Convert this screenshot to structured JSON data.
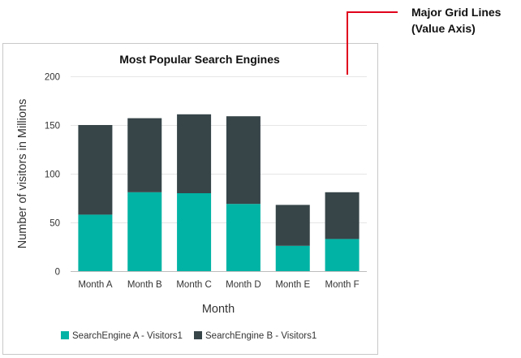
{
  "annotation": {
    "line1": "Major Grid Lines",
    "line2": "(Value Axis)",
    "color": "#e0001b"
  },
  "colors": {
    "series_a": "#00b3a4",
    "series_b": "#374549",
    "gridline": "#e6e6e6",
    "border": "#c8c8c8"
  },
  "chart_data": {
    "type": "bar",
    "stacked": true,
    "title": "Most Popular Search Engines",
    "xlabel": "Month",
    "ylabel": "Number of visitors in Millions",
    "ylim": [
      0,
      200
    ],
    "yticks": [
      0,
      50,
      100,
      150,
      200
    ],
    "grid": true,
    "legend_position": "bottom",
    "categories": [
      "Month A",
      "Month B",
      "Month C",
      "Month D",
      "Month E",
      "Month F"
    ],
    "series": [
      {
        "name": "SearchEngine A - Visitors1",
        "values": [
          58,
          81,
          80,
          69,
          26,
          33
        ]
      },
      {
        "name": "SearchEngine B - Visitors1",
        "values": [
          92,
          76,
          81,
          90,
          42,
          48
        ]
      }
    ]
  }
}
